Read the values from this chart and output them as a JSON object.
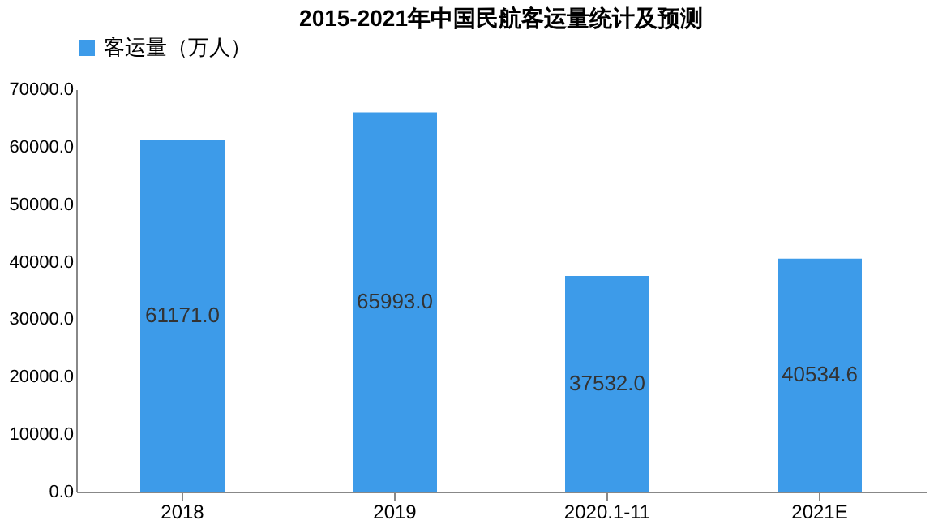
{
  "chart_data": {
    "type": "bar",
    "title": "2015-2021年中国民航客运量统计及预测",
    "categories": [
      "2018",
      "2019",
      "2020.1-11",
      "2021E"
    ],
    "series": [
      {
        "name": "客运量（万人）",
        "color": "#3d9be9",
        "values": [
          61171.0,
          65993.0,
          37532.0,
          40534.6
        ],
        "value_labels": [
          "61171.0",
          "65993.0",
          "37532.0",
          "40534.6"
        ]
      }
    ],
    "ylim": [
      0,
      70000
    ],
    "yticks": [
      {
        "value": 0,
        "label": "0.0"
      },
      {
        "value": 10000,
        "label": "10000.0"
      },
      {
        "value": 20000,
        "label": "20000.0"
      },
      {
        "value": 30000,
        "label": "30000.0"
      },
      {
        "value": 40000,
        "label": "40000.0"
      },
      {
        "value": 50000,
        "label": "50000.0"
      },
      {
        "value": 60000,
        "label": "60000.0"
      },
      {
        "value": 70000,
        "label": "70000.0"
      }
    ],
    "grid": false,
    "legend": "top"
  }
}
